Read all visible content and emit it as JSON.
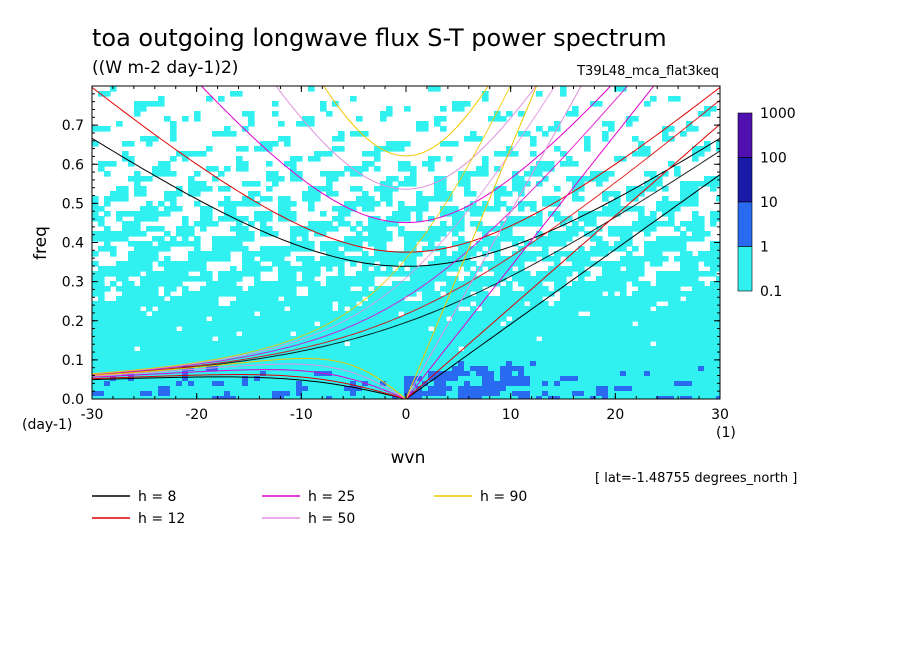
{
  "chart_data": {
    "type": "heatmap",
    "title": "toa outgoing longwave flux S-T power spectrum",
    "subtitle": "((W m-2 day-1)2)",
    "experiment": "T39L48_mca_flat3keq",
    "xlabel": "wvn",
    "ylabel": "freq",
    "x_unit": "(1)",
    "y_unit": "(day-1)",
    "xlim": [
      -30,
      30
    ],
    "ylim": [
      0,
      0.8
    ],
    "x_ticks": [
      "-30",
      "-20",
      "-10",
      "0",
      "10",
      "20",
      "30"
    ],
    "x_tick_values": [
      -30,
      -20,
      -10,
      0,
      10,
      20,
      30
    ],
    "y_ticks": [
      "0.0",
      "0.1",
      "0.2",
      "0.3",
      "0.4",
      "0.5",
      "0.6",
      "0.7"
    ],
    "y_tick_values": [
      0,
      0.1,
      0.2,
      0.3,
      0.4,
      0.5,
      0.6,
      0.7
    ],
    "colorbar": {
      "levels": [
        "1000",
        "100",
        "10",
        "1",
        "0.1"
      ],
      "colors": [
        "#5010b0",
        "#1a1aa8",
        "#2a6af0",
        "#30f0f0"
      ]
    },
    "footnote": "[ lat=-1.48755 degrees_north ]",
    "legend": [
      {
        "label": "h =  8",
        "color": "#000000"
      },
      {
        "label": "h = 12",
        "color": "#e00000"
      },
      {
        "label": "h = 25",
        "color": "#e000d0"
      },
      {
        "label": "h = 50",
        "color": "#e090e0"
      },
      {
        "label": "h = 90",
        "color": "#f0c800"
      }
    ],
    "curves_h": [
      8,
      12,
      25,
      50,
      90
    ]
  }
}
